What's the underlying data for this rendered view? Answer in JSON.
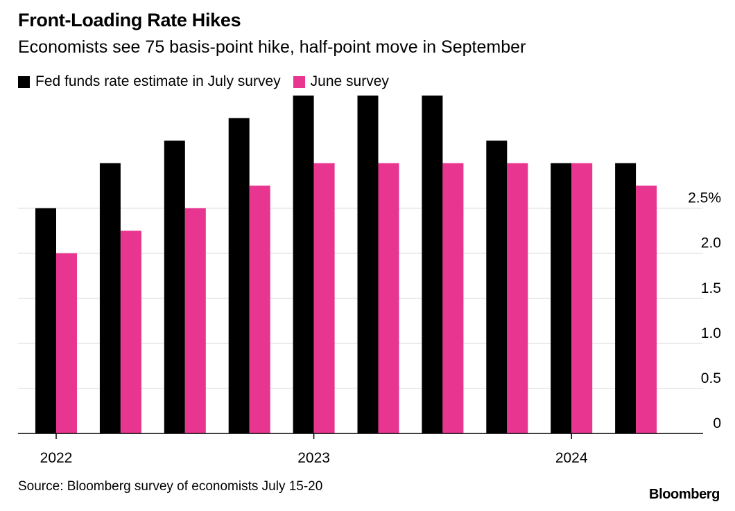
{
  "chart_data": {
    "type": "bar",
    "title": "Front-Loading Rate Hikes",
    "subtitle": "Economists see 75 basis-point hike, half-point move in September",
    "xlabel": "",
    "ylabel": "",
    "ylim": [
      0,
      3.75
    ],
    "y_ticks": [
      0,
      0.5,
      1.0,
      1.5,
      2.0,
      2.5
    ],
    "y_tick_labels": [
      "0",
      "0.5",
      "1.0",
      "1.5",
      "2.0",
      "2.5%"
    ],
    "y_axis_position": "right",
    "grid": true,
    "legend": "top-left",
    "x_tick_labels": [
      {
        "label": "2022",
        "at_index": 0
      },
      {
        "label": "2023",
        "at_index": 4
      },
      {
        "label": "2024",
        "at_index": 8
      }
    ],
    "categories": [
      "",
      "",
      "",
      "",
      "",
      "",
      "",
      "",
      "",
      ""
    ],
    "series": [
      {
        "name": "Fed funds rate estimate in July survey",
        "color": "#000000",
        "values": [
          2.5,
          3.0,
          3.25,
          3.5,
          3.75,
          3.75,
          3.75,
          3.25,
          3.0,
          3.0
        ]
      },
      {
        "name": "June survey",
        "color": "#e8358f",
        "values": [
          2.0,
          2.25,
          2.5,
          2.75,
          3.0,
          3.0,
          3.0,
          3.0,
          3.0,
          2.75
        ]
      }
    ],
    "source": "Source: Bloomberg survey of economists July 15-20",
    "brand": "Bloomberg"
  }
}
